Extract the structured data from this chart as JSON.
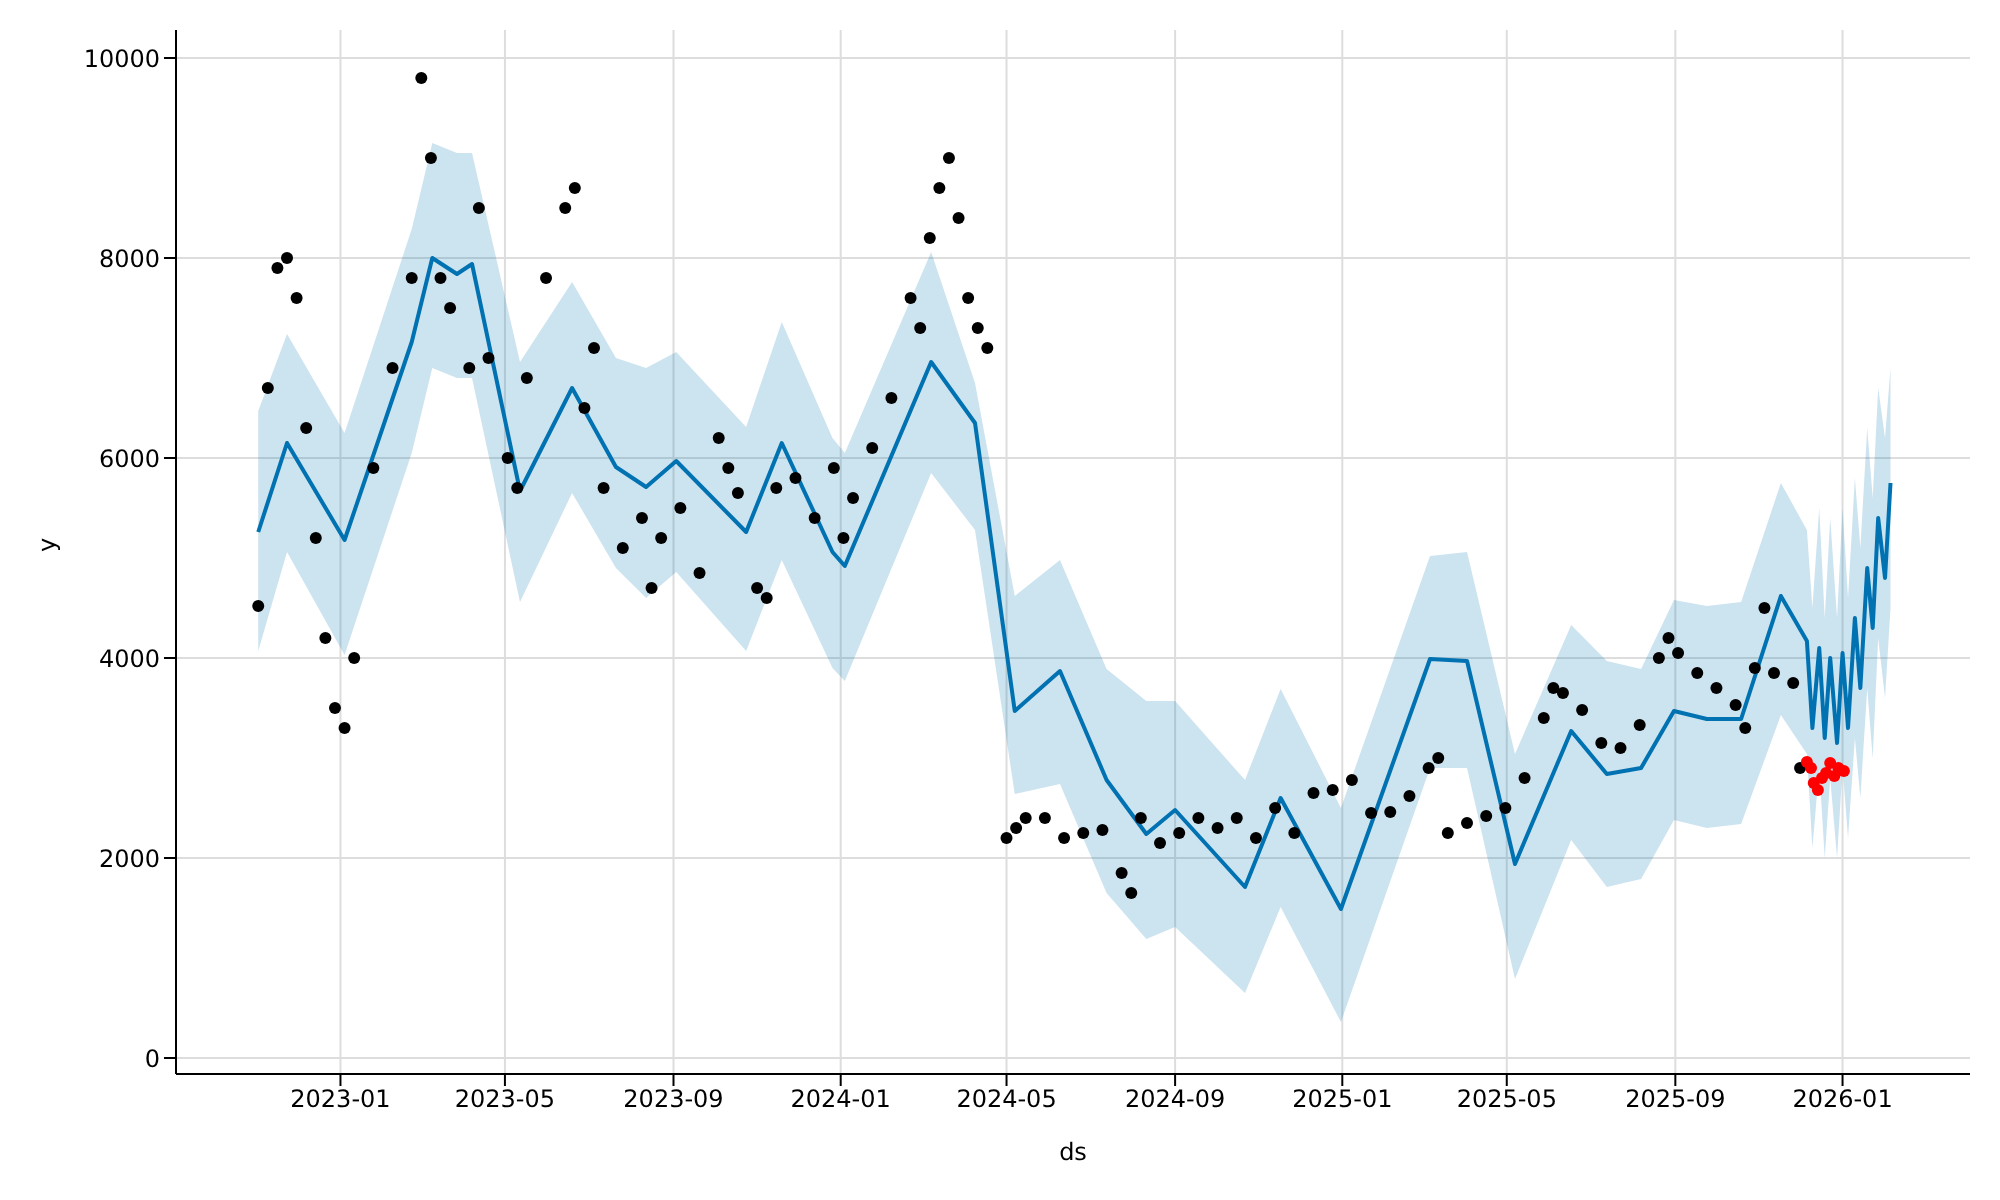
{
  "chart_data": {
    "type": "line",
    "xlabel": "ds",
    "ylabel": "y",
    "grid": true,
    "legend": false,
    "line_style": "solid",
    "xlim": [
      "2022-09-03",
      "2026-04-04"
    ],
    "xticks": [
      "2023-01",
      "2023-05",
      "2023-09",
      "2024-01",
      "2024-05",
      "2024-09",
      "2025-01",
      "2025-05",
      "2025-09",
      "2026-01"
    ],
    "ylim": [
      -160,
      10280
    ],
    "yticks": [
      0,
      2000,
      4000,
      6000,
      8000,
      10000
    ],
    "series": [
      {
        "color": "#0072b2",
        "x": [
          "2022-11-02",
          "2022-11-23",
          "2023-01-04",
          "2023-02-22",
          "2023-03-09",
          "2023-03-27",
          "2023-04-07",
          "2023-05-12",
          "2023-06-19",
          "2023-07-21",
          "2023-08-12",
          "2023-09-03",
          "2023-10-24",
          "2023-11-19",
          "2023-12-26",
          "2024-01-04",
          "2024-03-07",
          "2024-04-08",
          "2024-05-07",
          "2024-06-09",
          "2024-07-13",
          "2024-08-11",
          "2024-09-01",
          "2024-10-22",
          "2024-11-17",
          "2024-12-31",
          "2025-03-06",
          "2025-04-02",
          "2025-05-07",
          "2025-06-17",
          "2025-07-13",
          "2025-08-07",
          "2025-08-31",
          "2025-09-24",
          "2025-10-19",
          "2025-11-17",
          "2025-12-06",
          "2025-12-10",
          "2025-12-15",
          "2025-12-19",
          "2025-12-23",
          "2025-12-28",
          "2026-01-01",
          "2026-01-05",
          "2026-01-10",
          "2026-01-14",
          "2026-01-19",
          "2026-01-23",
          "2026-01-27",
          "2026-02-01",
          "2026-02-05"
        ],
        "values": [
          5260,
          6150,
          5180,
          7160,
          8000,
          7840,
          7940,
          5670,
          6700,
          5910,
          5710,
          5970,
          5260,
          6150,
          5060,
          4920,
          6960,
          6350,
          3470,
          3870,
          2780,
          2240,
          2480,
          1710,
          2600,
          1490,
          3990,
          3970,
          1940,
          3270,
          2840,
          2900,
          3470,
          3390,
          3390,
          4620,
          4170,
          3300,
          4100,
          3200,
          4000,
          3150,
          4050,
          3300,
          4400,
          3700,
          4900,
          4300,
          5400,
          4800,
          5750
        ],
        "upper": [
          6470,
          7240,
          6250,
          8290,
          9150,
          9050,
          9050,
          6960,
          7760,
          7000,
          6900,
          7060,
          6310,
          7360,
          6200,
          6050,
          8060,
          6750,
          4620,
          4980,
          3890,
          3570,
          3570,
          2780,
          3690,
          2500,
          5020,
          5060,
          3040,
          4330,
          3970,
          3890,
          4580,
          4520,
          4560,
          5750,
          5280,
          4500,
          5500,
          4400,
          5400,
          4400,
          5500,
          4600,
          5800,
          5100,
          6300,
          5600,
          6700,
          6200,
          6900
        ],
        "lower": [
          4070,
          5060,
          4030,
          6050,
          6900,
          6800,
          6800,
          4560,
          5650,
          4900,
          4600,
          4860,
          4070,
          4980,
          3900,
          3770,
          5850,
          5280,
          2640,
          2740,
          1650,
          1190,
          1310,
          650,
          1510,
          360,
          2900,
          2900,
          790,
          2180,
          1710,
          1790,
          2380,
          2300,
          2340,
          3430,
          3040,
          2100,
          2900,
          2000,
          2800,
          2000,
          2900,
          2200,
          3200,
          2600,
          3700,
          3000,
          4200,
          3600,
          4500
        ]
      },
      {
        "type": "scatter",
        "marker": "circle",
        "color": "#000000",
        "x": [
          "2022-11-02",
          "2022-11-16",
          "2022-11-30",
          "2022-12-14",
          "2022-12-28",
          "2023-01-11",
          "2023-01-25",
          "2023-02-08",
          "2023-02-22",
          "2023-03-08",
          "2023-03-22",
          "2023-04-05",
          "2023-04-19",
          "2023-05-03",
          "2023-05-17",
          "2023-05-31",
          "2023-06-14",
          "2023-06-28",
          "2023-07-12",
          "2023-07-26",
          "2023-08-09",
          "2023-08-23",
          "2023-09-06",
          "2023-09-20",
          "2023-10-04",
          "2023-10-18",
          "2023-11-01",
          "2023-11-15",
          "2023-11-29",
          "2023-12-13",
          "2023-12-27",
          "2024-01-10",
          "2024-01-24",
          "2024-02-07",
          "2024-02-21",
          "2024-03-06",
          "2024-03-20",
          "2024-04-03",
          "2024-04-17",
          "2024-05-01",
          "2024-05-15",
          "2024-05-29",
          "2024-06-12",
          "2024-06-26",
          "2024-07-10",
          "2024-07-24",
          "2024-08-07",
          "2024-08-21",
          "2024-09-04",
          "2024-09-18",
          "2024-10-02",
          "2024-10-16",
          "2024-10-30",
          "2024-11-13",
          "2024-11-27",
          "2024-12-11",
          "2024-12-25",
          "2025-01-08",
          "2025-01-22",
          "2025-02-05",
          "2025-02-19",
          "2025-03-05",
          "2025-03-19",
          "2025-04-02",
          "2025-04-16",
          "2025-04-30",
          "2025-05-14",
          "2025-05-28",
          "2025-06-11",
          "2025-06-25",
          "2025-07-09",
          "2025-07-23",
          "2025-08-06",
          "2025-08-20",
          "2025-09-03",
          "2025-09-17",
          "2025-10-01",
          "2025-10-15",
          "2025-10-29",
          "2025-11-12",
          "2025-11-26",
          "2022-11-09",
          "2022-11-23",
          "2022-12-07",
          "2022-12-21",
          "2023-01-04",
          "2023-03-01",
          "2023-03-15",
          "2023-04-12",
          "2023-05-10",
          "2023-06-21",
          "2023-07-05",
          "2023-08-16",
          "2023-10-11",
          "2023-11-08",
          "2024-01-03",
          "2024-02-28",
          "2024-03-13",
          "2024-03-27",
          "2024-04-10",
          "2024-05-08",
          "2024-07-31",
          "2025-03-12",
          "2025-06-04",
          "2025-08-27",
          "2025-10-22",
          "2025-11-05",
          "2025-12-01"
        ],
        "values": [
          4520,
          7900,
          7600,
          5200,
          3500,
          4000,
          5900,
          6900,
          7800,
          9000,
          7500,
          6900,
          7000,
          6000,
          6800,
          7800,
          8500,
          6500,
          5700,
          5100,
          5400,
          5200,
          5500,
          4850,
          6200,
          5650,
          4700,
          5700,
          5800,
          5400,
          5900,
          5600,
          6100,
          6600,
          7600,
          8200,
          9000,
          7600,
          7100,
          2200,
          2400,
          2400,
          2200,
          2250,
          2280,
          1850,
          2400,
          2150,
          2250,
          2400,
          2300,
          2400,
          2200,
          2500,
          2250,
          2650,
          2680,
          2780,
          2450,
          2460,
          2620,
          2900,
          2250,
          2350,
          2420,
          2500,
          2800,
          3400,
          3650,
          3480,
          3150,
          3100,
          3330,
          4000,
          4050,
          3850,
          3700,
          3530,
          3900,
          3850,
          3750,
          6700,
          8000,
          6300,
          4200,
          3300,
          9800,
          7800,
          8500,
          5700,
          8700,
          7100,
          4700,
          5900,
          4600,
          5200,
          7300,
          8700,
          8400,
          7300,
          2300,
          1650,
          3000,
          3700,
          4200,
          3300,
          4500,
          2900
        ]
      },
      {
        "type": "scatter",
        "marker": "circle",
        "color": "#ff0000",
        "x": [
          "2025-12-06",
          "2025-12-09",
          "2025-12-11",
          "2025-12-14",
          "2025-12-17",
          "2025-12-20",
          "2025-12-23",
          "2025-12-26",
          "2025-12-29",
          "2026-01-02"
        ],
        "values": [
          2960,
          2900,
          2750,
          2680,
          2800,
          2850,
          2950,
          2820,
          2900,
          2870
        ]
      }
    ]
  }
}
